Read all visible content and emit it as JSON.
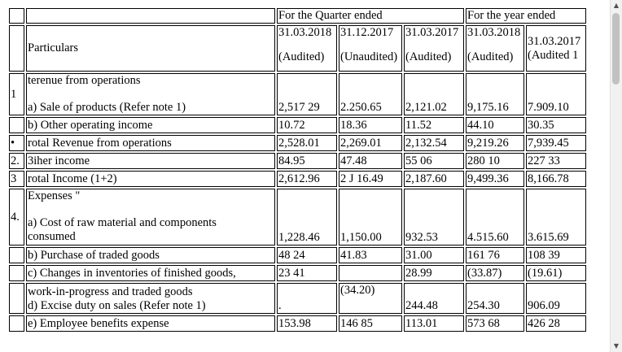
{
  "header": {
    "quarter_label": "For the Quarter ended",
    "year_label": "For the year ended",
    "particulars": "Particulars",
    "dates": [
      "31.03.2018",
      "31.12.2017",
      "31.03.2017",
      "31.03.2018",
      "31.03.2017"
    ],
    "status": [
      "(Audited)",
      "(Unaudited)",
      "(Audited)",
      "(Audited)",
      "(Audited 1"
    ]
  },
  "rows": {
    "revenue_head": {
      "num": "1",
      "label": "terenue from operations"
    },
    "sale_products": {
      "label": "a) Sale of products (Refer note 1)",
      "values": [
        "2,517 29",
        "2.250.65",
        "2,121.02",
        "9,175.16",
        "7.909.10"
      ]
    },
    "other_operating": {
      "label": "b) Other operating income",
      "values": [
        "10.72",
        "18.36",
        "11.52",
        "44.10",
        "30.35"
      ]
    },
    "total_revenue": {
      "num": "•",
      "label": "rotal Revenue from operations",
      "values": [
        "2,528.01",
        "2,269.01",
        "2,132.54",
        "9,219.26",
        "7,939.45"
      ]
    },
    "other_income": {
      "num": "2.",
      "label": "3iher income",
      "values": [
        "84.95",
        "47.48",
        "55 06",
        "280 10",
        "227 33"
      ]
    },
    "total_income": {
      "num": "3",
      "label": "rotal Income (1+2)",
      "values": [
        "2,612.96",
        "2 J 16.49",
        "2,187.60",
        "9,499.36",
        "8,166.78"
      ]
    },
    "expenses_head": {
      "num": "4.",
      "label": "Expenses \""
    },
    "raw_material": {
      "label_line1": "a) Cost of raw material and components",
      "label_line2": "consumed",
      "values": [
        "1,228.46",
        "1,150.00",
        "932.53",
        "4.515.60",
        "3.615.69"
      ]
    },
    "traded_goods": {
      "label": "b) Purchase of traded goods",
      "values": [
        "48 24",
        "41.83",
        "31.00",
        "161 76",
        "108 39"
      ]
    },
    "inventories": {
      "label": "c) Changes in inventories of finished goods,",
      "values": [
        "23 41",
        "",
        "28.99",
        "(33.87)",
        "(19.61)"
      ]
    },
    "wip_excise": {
      "label_line1": "work-in-progress and traded goods",
      "label_line2": "d) Excise duty on sales (Refer note 1)",
      "values": [
        ".",
        "(34.20)",
        "244.48",
        "254.30",
        "906.09"
      ]
    },
    "employee": {
      "label": "e) Employee benefits expense",
      "values": [
        "153.98",
        "146 85",
        "113.01",
        "573 68",
        "426 28"
      ]
    }
  }
}
